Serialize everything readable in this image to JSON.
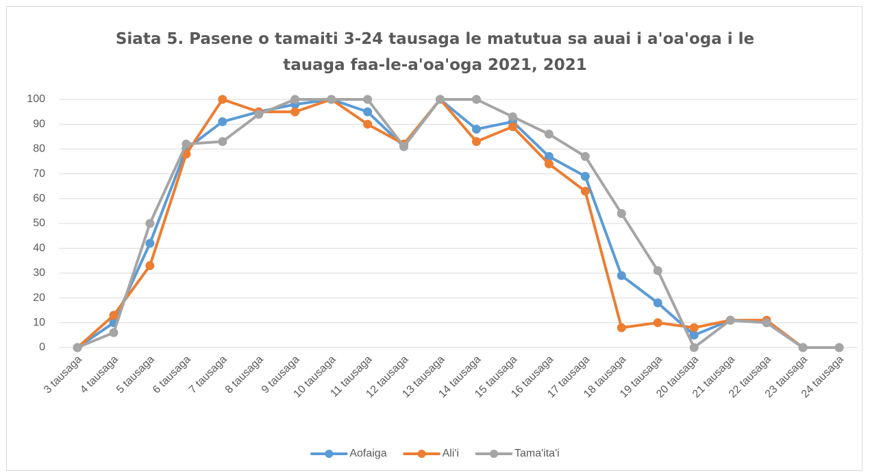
{
  "chart_data": {
    "type": "line",
    "title": "Siata 5. Pasene o tamaiti 3-24 tausaga le matutua sa auai i a'oa'oga i le tauaga faa-le-a'oa'oga 2021, 2021",
    "categories": [
      "3 tausaga",
      "4 tausaga",
      "5 tausaga",
      "6 tausaga",
      "7 tausaga",
      "8 tausaga",
      "9 tausaga",
      "10 tausaga",
      "11 tausaga",
      "12 tausaga",
      "13 tausaga",
      "14 tausaga",
      "15 tausaga",
      "16 tausaga",
      "17 tausaga",
      "18 tausaga",
      "19 tausaga",
      "20 tausaga",
      "21 tausaga",
      "22 tausaga",
      "23 tausaga",
      "24 tausaga"
    ],
    "series": [
      {
        "name": "Aofaiga",
        "color": "#5b9bd5",
        "values": [
          0,
          10,
          42,
          80,
          91,
          95,
          98,
          100,
          95,
          81,
          100,
          88,
          91,
          77,
          69,
          29,
          18,
          5,
          11,
          10,
          0,
          0
        ]
      },
      {
        "name": "Ali'i",
        "color": "#ed7d31",
        "values": [
          0,
          13,
          33,
          78,
          100,
          95,
          95,
          100,
          90,
          82,
          100,
          83,
          89,
          74,
          63,
          8,
          10,
          8,
          11,
          11,
          0,
          0
        ]
      },
      {
        "name": "Tama'ita'i",
        "color": "#a5a5a5",
        "values": [
          0,
          6,
          50,
          82,
          83,
          94,
          100,
          100,
          100,
          81,
          100,
          100,
          93,
          86,
          77,
          54,
          31,
          0,
          11,
          10,
          0,
          0
        ]
      }
    ],
    "ylim": [
      0,
      100
    ],
    "yticks": [
      0,
      10,
      20,
      30,
      40,
      50,
      60,
      70,
      80,
      90,
      100
    ],
    "grid": true,
    "legend": "bottom"
  }
}
